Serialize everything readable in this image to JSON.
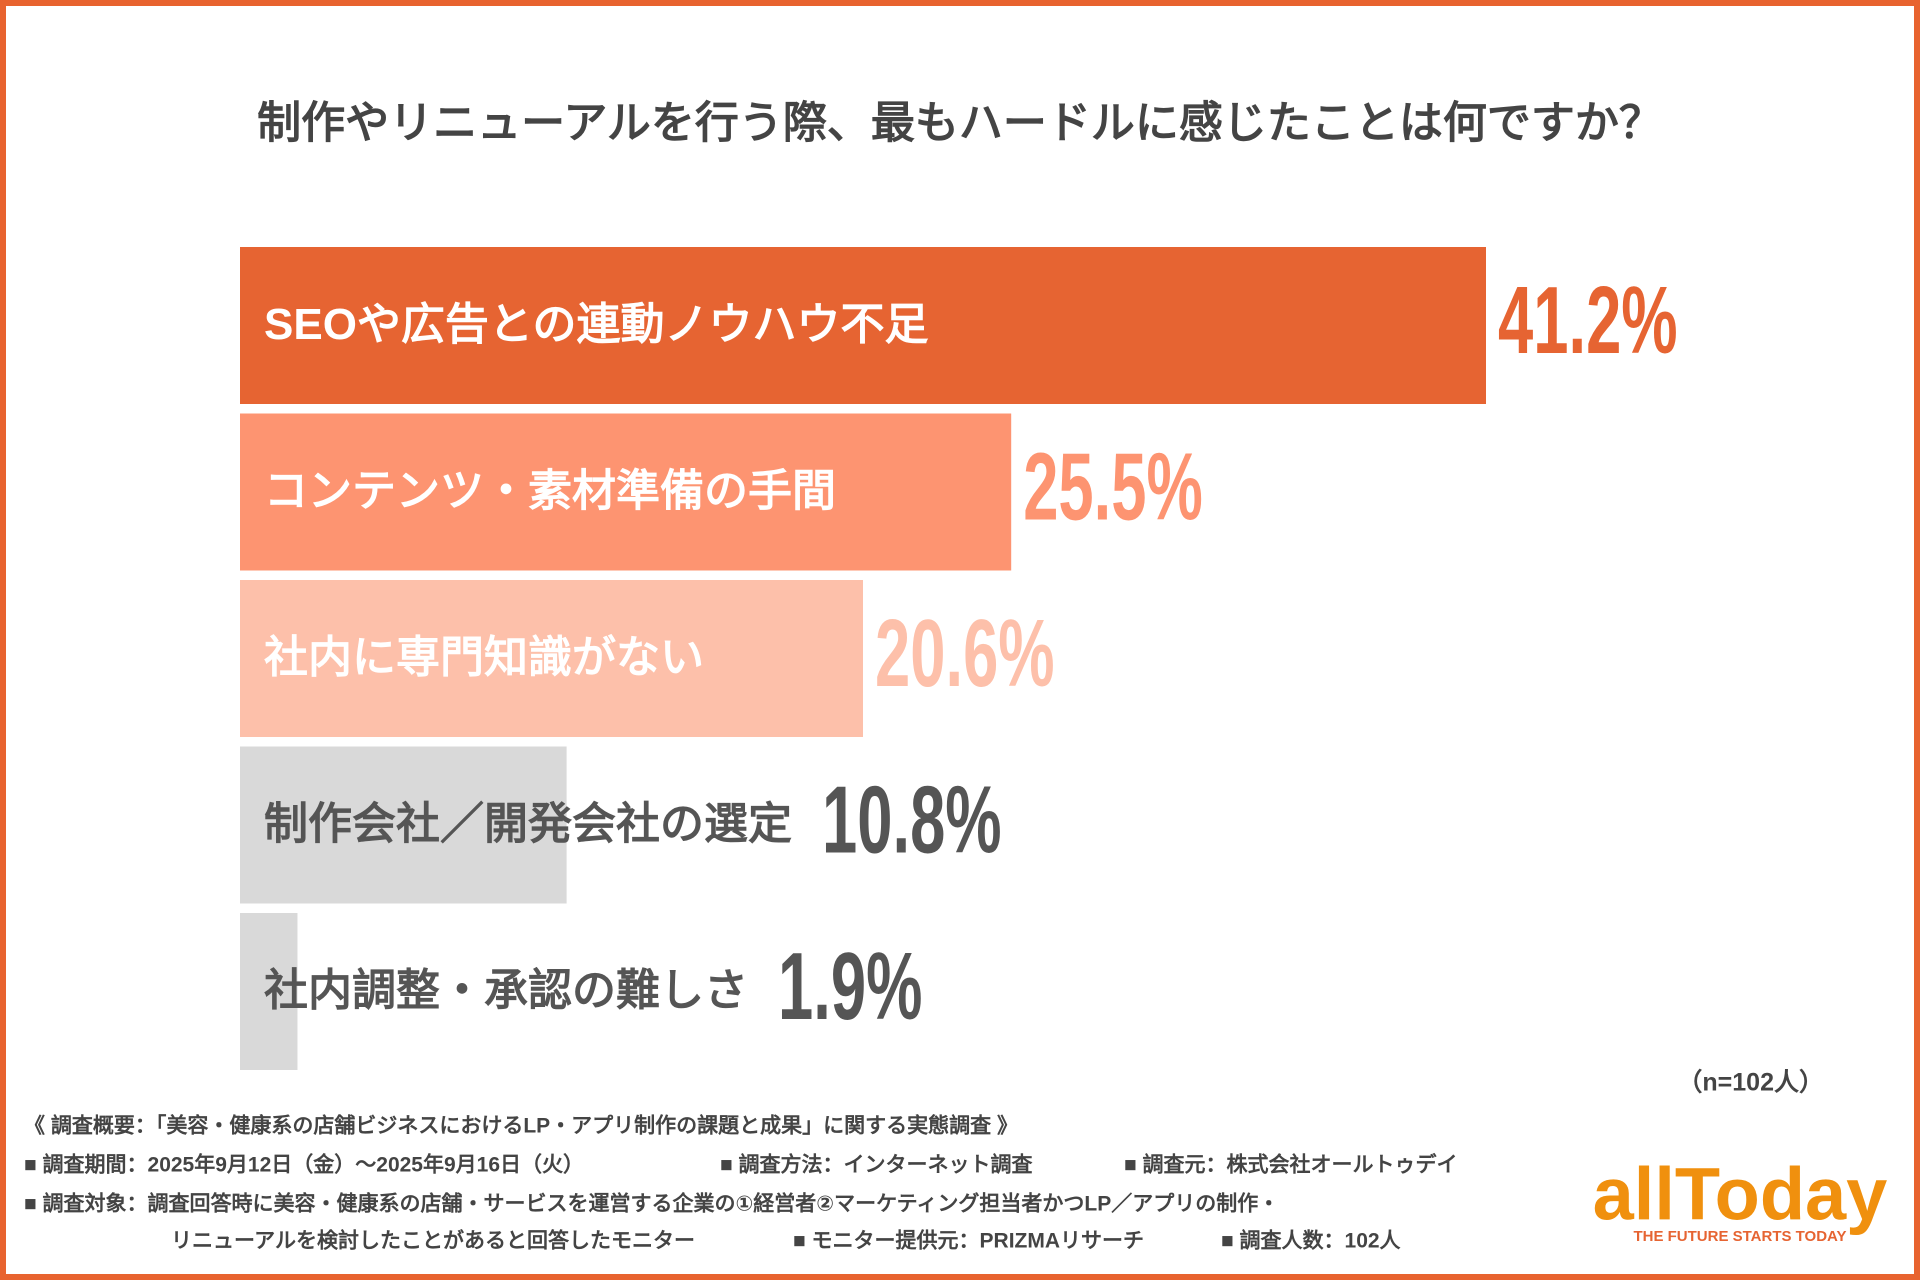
{
  "chart_data": {
    "type": "bar",
    "orientation": "horizontal",
    "title": "制作やリニューアルを行う際、最もハードルに感じたことは何ですか？",
    "categories": [
      "SEOや広告との連動ノウハウ不足",
      "コンテンツ・素材準備の手間",
      "社内に専門知識がない",
      "制作会社／開発会社の選定",
      "社内調整・承認の難しさ"
    ],
    "values": [
      41.2,
      25.5,
      20.6,
      10.8,
      1.9
    ],
    "value_labels": [
      "41.2%",
      "25.5%",
      "20.6%",
      "10.8%",
      "1.9%"
    ],
    "colors": [
      "#e66432",
      "#fd9471",
      "#fdc0aa",
      "#d9d9d9",
      "#d9d9d9"
    ],
    "value_label_colors": [
      "#e66432",
      "#fd9471",
      "#fdc0aa",
      "#555555",
      "#555555"
    ],
    "category_label_colors": [
      "#ffffff",
      "#ffffff",
      "#ffffff",
      "#555555",
      "#555555"
    ],
    "sample_note": "（n=102人）"
  },
  "footer": {
    "lines": [
      [
        "《 調査概要：「美容・健康系の店舗ビジネスにおけるLP・アプリ制作の課題と成果」に関する実態調査 》"
      ],
      [
        "■ 調査期間：2025年9月12日（金）〜2025年9月16日（火）",
        "■ 調査方法：インターネット調査",
        "■ 調査元：株式会社オールトゥデイ"
      ],
      [
        "■ 調査対象：調査回答時に美容・健康系の店舗・サービスを運営する企業の①経営者②マーケティング担当者かつLP／アプリの制作・"
      ],
      [
        "リニューアルを検討したことがあると回答したモニター",
        "■ モニター提供元：PRIZMAリサーチ",
        "■ 調査人数：102人"
      ]
    ]
  },
  "logo": {
    "name": "allToday",
    "tagline": "THE FUTURE STARTS TODAY"
  }
}
